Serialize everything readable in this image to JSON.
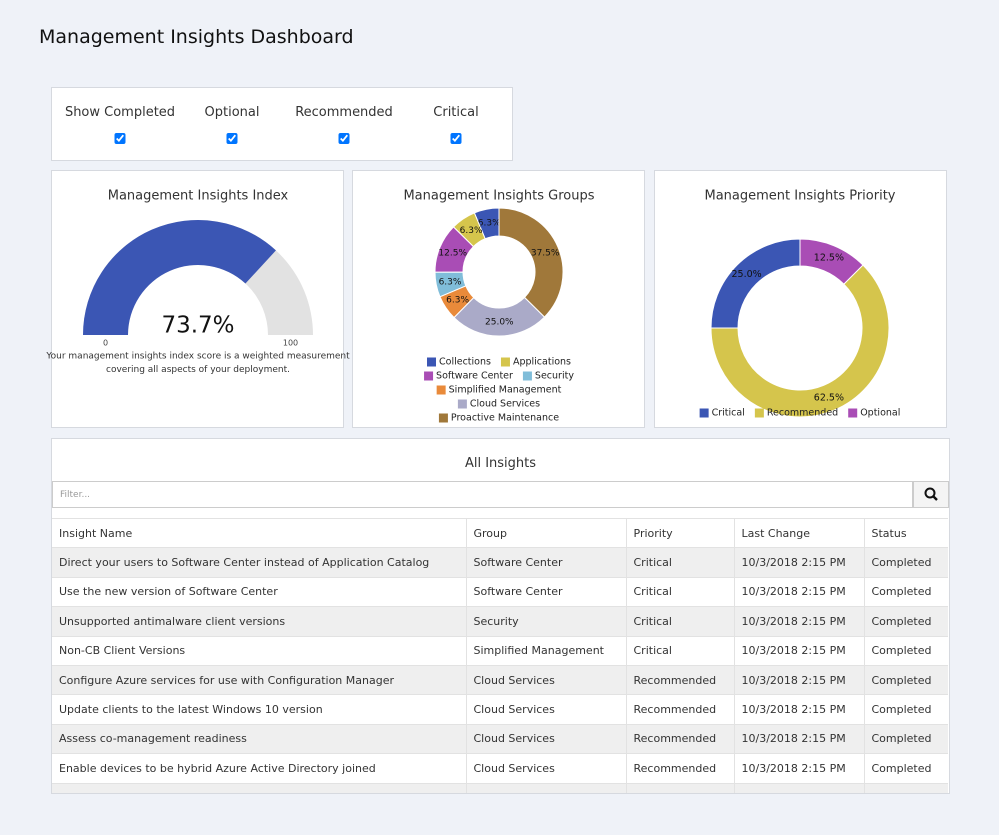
{
  "title": "Management Insights Dashboard",
  "filters": [
    {
      "label": "Show Completed",
      "checked": true
    },
    {
      "label": "Optional",
      "checked": true
    },
    {
      "label": "Recommended",
      "checked": true
    },
    {
      "label": "Critical",
      "checked": true
    }
  ],
  "chart_data": [
    {
      "type": "gauge",
      "title": "Management Insights Index",
      "value": 73.7,
      "value_label": "73.7%",
      "ylim": [
        0,
        100
      ],
      "yticks": [
        0,
        100
      ],
      "description": [
        "Your management insights index score is a weighted measurement",
        "covering all aspects of your deployment."
      ],
      "colors": [
        "#3b56b4",
        "#e2e2e2"
      ]
    },
    {
      "type": "donut",
      "title": "Management Insights Groups",
      "categories": [
        "Collections",
        "Applications",
        "Software Center",
        "Security",
        "Simplified Management",
        "Cloud Services",
        "Proactive Maintenance"
      ],
      "values": [
        6.3,
        6.3,
        12.5,
        6.3,
        6.3,
        25.0,
        37.5
      ],
      "value_labels": [
        "6.3%",
        "6.3%",
        "12.5%",
        "6.3%",
        "6.3%",
        "25.0%",
        "37.5%"
      ],
      "colors": [
        "#3b56b4",
        "#d5c54c",
        "#a94db5",
        "#80bdd9",
        "#e98a3a",
        "#aaaac8",
        "#a0783a"
      ]
    },
    {
      "type": "donut",
      "title": "Management Insights Priority",
      "categories": [
        "Critical",
        "Recommended",
        "Optional"
      ],
      "values": [
        25.0,
        62.5,
        12.5
      ],
      "value_labels": [
        "25.0%",
        "62.5%",
        "12.5%"
      ],
      "colors": [
        "#3b56b4",
        "#d5c54c",
        "#a94db5"
      ]
    }
  ],
  "table": {
    "title": "All Insights",
    "filter_placeholder": "Filter...",
    "columns": [
      "Insight Name",
      "Group",
      "Priority",
      "Last Change",
      "Status"
    ],
    "rows": [
      [
        "Direct your users to Software Center instead of Application Catalog",
        "Software Center",
        "Critical",
        "10/3/2018 2:15 PM",
        "Completed"
      ],
      [
        "Use the new version of Software Center",
        "Software Center",
        "Critical",
        "10/3/2018 2:15 PM",
        "Completed"
      ],
      [
        "Unsupported antimalware client versions",
        "Security",
        "Critical",
        "10/3/2018 2:15 PM",
        "Completed"
      ],
      [
        "Non-CB Client Versions",
        "Simplified Management",
        "Critical",
        "10/3/2018 2:15 PM",
        "Completed"
      ],
      [
        "Configure Azure services for use with Configuration Manager",
        "Cloud Services",
        "Recommended",
        "10/3/2018 2:15 PM",
        "Completed"
      ],
      [
        "Update clients to the latest Windows 10 version",
        "Cloud Services",
        "Recommended",
        "10/3/2018 2:15 PM",
        "Completed"
      ],
      [
        "Assess co-management readiness",
        "Cloud Services",
        "Recommended",
        "10/3/2018 2:15 PM",
        "Completed"
      ],
      [
        "Enable devices to be hybrid Azure Active Directory joined",
        "Cloud Services",
        "Recommended",
        "10/3/2018 2:15 PM",
        "Completed"
      ]
    ]
  }
}
